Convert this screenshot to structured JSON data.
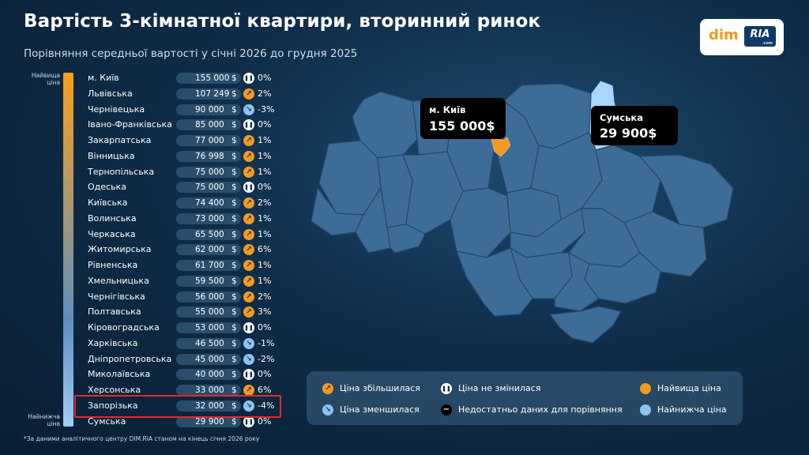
{
  "header": {
    "title": "Вартість 3-кімнатної квартири, вторинний ринок",
    "subtitle": "Порівняння середньої вартості у січні 2026 до грудня 2025"
  },
  "logo": {
    "dim": "dim",
    "ria": "RIA",
    "com": ".com"
  },
  "scale": {
    "top_label": "Найвища ціна",
    "bottom_label": "Найнижча ціна"
  },
  "regions": [
    {
      "name": "м. Київ",
      "price": "155 000",
      "currency": "$",
      "change": "0%",
      "trend": "same"
    },
    {
      "name": "Львівська",
      "price": "107 249",
      "currency": "$",
      "change": "2%",
      "trend": "up"
    },
    {
      "name": "Чернівецька",
      "price": "90 000",
      "currency": "$",
      "change": "-3%",
      "trend": "down"
    },
    {
      "name": "Івано-Франківська",
      "price": "85 000",
      "currency": "$",
      "change": "0%",
      "trend": "same"
    },
    {
      "name": "Закарпатська",
      "price": "77 000",
      "currency": "$",
      "change": "1%",
      "trend": "up"
    },
    {
      "name": "Вінницька",
      "price": "76 998",
      "currency": "$",
      "change": "1%",
      "trend": "up"
    },
    {
      "name": "Тернопільська",
      "price": "75 000",
      "currency": "$",
      "change": "1%",
      "trend": "up"
    },
    {
      "name": "Одеська",
      "price": "75 000",
      "currency": "$",
      "change": "0%",
      "trend": "same"
    },
    {
      "name": "Київська",
      "price": "74 400",
      "currency": "$",
      "change": "2%",
      "trend": "up"
    },
    {
      "name": "Волинська",
      "price": "73 000",
      "currency": "$",
      "change": "1%",
      "trend": "up"
    },
    {
      "name": "Черкаська",
      "price": "65 500",
      "currency": "$",
      "change": "1%",
      "trend": "up"
    },
    {
      "name": "Житомирська",
      "price": "62 000",
      "currency": "$",
      "change": "6%",
      "trend": "up"
    },
    {
      "name": "Рівненська",
      "price": "61 700",
      "currency": "$",
      "change": "1%",
      "trend": "up"
    },
    {
      "name": "Хмельницька",
      "price": "59 500",
      "currency": "$",
      "change": "1%",
      "trend": "up"
    },
    {
      "name": "Чернігівська",
      "price": "56 000",
      "currency": "$",
      "change": "2%",
      "trend": "up"
    },
    {
      "name": "Полтавська",
      "price": "55 000",
      "currency": "$",
      "change": "3%",
      "trend": "up"
    },
    {
      "name": "Кіровоградська",
      "price": "53 000",
      "currency": "$",
      "change": "0%",
      "trend": "same"
    },
    {
      "name": "Харківська",
      "price": "46 500",
      "currency": "$",
      "change": "-1%",
      "trend": "down"
    },
    {
      "name": "Дніпропетровська",
      "price": "45 000",
      "currency": "$",
      "change": "-2%",
      "trend": "down"
    },
    {
      "name": "Миколаївська",
      "price": "40 000",
      "currency": "$",
      "change": "0%",
      "trend": "same"
    },
    {
      "name": "Херсонська",
      "price": "33 000",
      "currency": "$",
      "change": "6%",
      "trend": "up"
    },
    {
      "name": "Запорізька",
      "price": "32 000",
      "currency": "$",
      "change": "-4%",
      "trend": "down"
    },
    {
      "name": "Сумська",
      "price": "29 900",
      "currency": "$",
      "change": "0%",
      "trend": "same"
    }
  ],
  "callouts": {
    "kyiv": {
      "name": "м. Київ",
      "price": "155 000$"
    },
    "sumy": {
      "name": "Сумська",
      "price": "29 900$"
    }
  },
  "legend": {
    "up": "Ціна збільшилася",
    "same": "Ціна не змінилася",
    "high": "Найвища ціна",
    "down": "Ціна зменшилася",
    "nodata": "Недостатньо даних для порівняння",
    "low": "Найнижча ціна"
  },
  "footnote": "*За даними аналітичного центру DIM.RIA станом на кінець січня 2026 року",
  "colors": {
    "background": "#0f2d49",
    "highest": "#f39a1e",
    "lowest": "#8ec3f0",
    "map_fill": "#3d6c97",
    "highlight": "#e02b2b"
  }
}
